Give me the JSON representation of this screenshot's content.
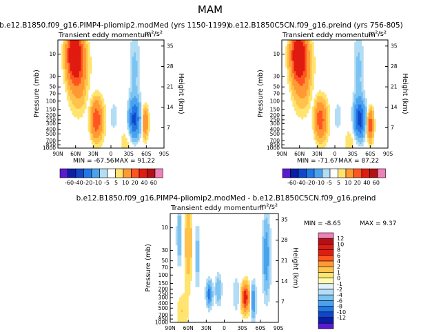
{
  "figure_title": "MAM",
  "colors": {
    "pos": [
      "#fffbb0",
      "#ffe570",
      "#ffc24d",
      "#ff9933",
      "#ff5520",
      "#e01b10",
      "#b31015",
      "#f080b8"
    ],
    "neg": [
      "#e1f2ff",
      "#b3ddf5",
      "#7cc3f2",
      "#4aa2ee",
      "#2277e6",
      "#1146c8",
      "#0a1ea8",
      "#5a1acf"
    ],
    "contour": "#444444"
  },
  "chart_data": [
    {
      "type": "heatmap",
      "case_label": "b.e12.B1850.f09_g16.PIMP4-pliomip2.modMed (yrs 1150-1199)",
      "title": "Transient eddy momentum",
      "units": "m²/s²",
      "ylabel": "Pressure (mb)",
      "ylabel_right": "Height (km)",
      "x_ticks": [
        "90N",
        "60N",
        "30N",
        "0",
        "30S",
        "60S",
        "90S"
      ],
      "y_ticks": [
        "10",
        "30",
        "50",
        "70",
        "100",
        "150",
        "200",
        "250",
        "300",
        "400",
        "500",
        "700",
        "850",
        "1000"
      ],
      "y_ticks_right": [
        "35",
        "28",
        "21",
        "14",
        "7"
      ],
      "min_label": "MIN = -67.56",
      "max_label": "MAX =  91.22",
      "blobs": [
        {
          "lat": 62,
          "p": 10,
          "value": 92,
          "wlat": 12,
          "wz": 1.1
        },
        {
          "lat": 55,
          "p": 25,
          "value": 35,
          "wlat": 16,
          "wz": 1.6
        },
        {
          "lat": 38,
          "p": 70,
          "value": -4,
          "wlat": 8,
          "wz": 1.5
        },
        {
          "lat": 25,
          "p": 250,
          "value": 55,
          "wlat": 9,
          "wz": 0.9
        },
        {
          "lat": 15,
          "p": 250,
          "value": 6,
          "wlat": 8,
          "wz": 1.2
        },
        {
          "lat": -5,
          "p": 220,
          "value": -10,
          "wlat": 6,
          "wz": 0.7
        },
        {
          "lat": -40,
          "p": 250,
          "value": -68,
          "wlat": 9,
          "wz": 0.9
        },
        {
          "lat": -40,
          "p": 20,
          "value": -12,
          "wlat": 9,
          "wz": 1.8
        },
        {
          "lat": -58,
          "p": 280,
          "value": 40,
          "wlat": 5,
          "wz": 0.7
        },
        {
          "lat": -30,
          "p": 700,
          "value": 8,
          "wlat": 18,
          "wz": 0.9
        }
      ]
    },
    {
      "type": "heatmap",
      "case_label": "b.e12.B1850C5CN.f09_g16.preind (yrs 756-805)",
      "title": "Transient eddy momentum",
      "units": "m²/s²",
      "ylabel": "Pressure (mb)",
      "ylabel_right": "Height (km)",
      "x_ticks": [
        "90N",
        "60N",
        "30N",
        "0",
        "30S",
        "60S",
        "90S"
      ],
      "y_ticks": [
        "10",
        "30",
        "50",
        "70",
        "100",
        "150",
        "200",
        "250",
        "300",
        "400",
        "500",
        "700",
        "850",
        "1000"
      ],
      "y_ticks_right": [
        "35",
        "28",
        "21",
        "14",
        "7"
      ],
      "min_label": "MIN = -71.67",
      "max_label": "MAX =  87.22",
      "blobs": [
        {
          "lat": 62,
          "p": 10,
          "value": 87,
          "wlat": 12,
          "wz": 1.1
        },
        {
          "lat": 55,
          "p": 25,
          "value": 35,
          "wlat": 16,
          "wz": 1.6
        },
        {
          "lat": 38,
          "p": 70,
          "value": -4,
          "wlat": 8,
          "wz": 1.5
        },
        {
          "lat": 25,
          "p": 250,
          "value": 52,
          "wlat": 9,
          "wz": 0.9
        },
        {
          "lat": 15,
          "p": 250,
          "value": 6,
          "wlat": 8,
          "wz": 1.2
        },
        {
          "lat": -5,
          "p": 220,
          "value": -10,
          "wlat": 6,
          "wz": 0.7
        },
        {
          "lat": -42,
          "p": 250,
          "value": -72,
          "wlat": 9,
          "wz": 0.9
        },
        {
          "lat": -40,
          "p": 20,
          "value": -12,
          "wlat": 9,
          "wz": 1.8
        },
        {
          "lat": -60,
          "p": 320,
          "value": 55,
          "wlat": 5,
          "wz": 0.7
        },
        {
          "lat": -30,
          "p": 700,
          "value": 8,
          "wlat": 18,
          "wz": 0.9
        }
      ]
    },
    {
      "type": "heatmap",
      "case_label": "b.e12.B1850.f09_g16.PIMP4-pliomip2.modMed - b.e12.B1850C5CN.f09_g16.preind",
      "title": "Transient eddy momentum",
      "units": "m²/s²",
      "ylabel": "Pressure (mb)",
      "ylabel_right": "Height (km)",
      "x_ticks": [
        "90N",
        "60N",
        "30N",
        "0",
        "30S",
        "60S",
        "90S"
      ],
      "y_ticks": [
        "10",
        "30",
        "50",
        "70",
        "100",
        "150",
        "200",
        "250",
        "300",
        "400",
        "500",
        "700",
        "850",
        "1000"
      ],
      "y_ticks_right": [
        "35",
        "28",
        "21",
        "14",
        "7"
      ],
      "min_label": "MIN =  -8.65",
      "max_label": "MAX =   9.37",
      "blobs": [
        {
          "lat": 75,
          "p": 15,
          "value": -4,
          "wlat": 4,
          "wz": 1.3
        },
        {
          "lat": 60,
          "p": 20,
          "value": 4,
          "wlat": 6,
          "wz": 2.0
        },
        {
          "lat": 45,
          "p": 40,
          "value": -3,
          "wlat": 4,
          "wz": 1.5
        },
        {
          "lat": 25,
          "p": 250,
          "value": -7,
          "wlat": 5,
          "wz": 0.6
        },
        {
          "lat": 10,
          "p": 200,
          "value": -4,
          "wlat": 5,
          "wz": 0.7
        },
        {
          "lat": -35,
          "p": 300,
          "value": 9.4,
          "wlat": 7,
          "wz": 0.7
        },
        {
          "lat": -48,
          "p": 350,
          "value": -7,
          "wlat": 4,
          "wz": 0.8
        },
        {
          "lat": -70,
          "p": 40,
          "value": -6,
          "wlat": 6,
          "wz": 1.8
        },
        {
          "lat": -20,
          "p": 250,
          "value": -2,
          "wlat": 6,
          "wz": 0.9
        },
        {
          "lat": 70,
          "p": 600,
          "value": 2,
          "wlat": 10,
          "wz": 1.0
        }
      ]
    }
  ],
  "colorbar_top": {
    "labels": [
      "-60",
      "-40",
      "-20",
      "-10",
      "-5",
      "5",
      "10",
      "20",
      "40",
      "60"
    ]
  },
  "colorbar_diff": {
    "labels": [
      "12",
      "10",
      "8",
      "6",
      "4",
      "2",
      "1",
      "0",
      "-1",
      "-2",
      "-4",
      "-6",
      "-8",
      "-10",
      "-12"
    ]
  }
}
